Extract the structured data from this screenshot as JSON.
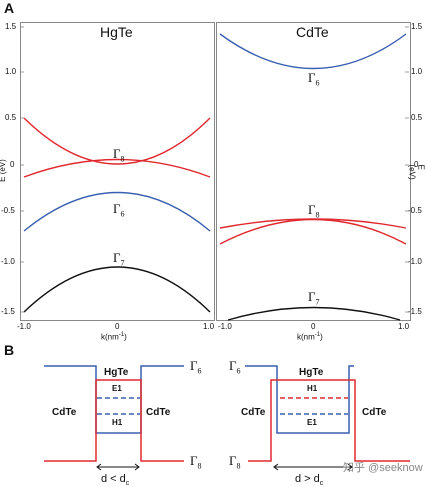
{
  "panel_a": {
    "letter": "A",
    "left_material": "HgTe",
    "right_material": "CdTe",
    "y_axis_title": "E (eV)",
    "x_axis_title": "k(nm",
    "x_axis_title_sup": "-1",
    "x_axis_title_close": ")",
    "y_ticks": [
      "1.5",
      "1.0",
      "0.5",
      "0",
      "-0.5",
      "-1.0",
      "-1.5"
    ],
    "x_ticks_left": [
      "-1.0",
      "0",
      "1.0"
    ],
    "x_ticks_right": [
      "-1.0",
      "0",
      "1.0"
    ],
    "hgte_labels": {
      "g8": "Γ",
      "g8_sub": "8",
      "g6": "Γ",
      "g6_sub": "6",
      "g7": "Γ",
      "g7_sub": "7"
    },
    "cdte_labels": {
      "g6": "Γ",
      "g6_sub": "6",
      "g8": "Γ",
      "g8_sub": "8",
      "g7": "Γ",
      "g7_sub": "7"
    }
  },
  "panel_b": {
    "letter": "B",
    "left": {
      "center": "HgTe",
      "left_side": "CdTe",
      "right_side": "CdTe",
      "upper_subband": "E1",
      "lower_subband": "H1",
      "top_label": "Γ",
      "top_sub": "6",
      "bottom_label": "Γ",
      "bottom_sub": "8",
      "width_label": "d < d",
      "width_sub": "c"
    },
    "right": {
      "center": "HgTe",
      "left_side": "CdTe",
      "right_side": "CdTe",
      "upper_subband": "H1",
      "lower_subband": "E1",
      "top_label": "Γ",
      "top_sub": "6",
      "bottom_label": "Γ",
      "bottom_sub": "8",
      "width_label": "d > d",
      "width_sub": "c"
    }
  },
  "watermark": "知乎 @seeknow",
  "colors": {
    "red": "#e0282e",
    "blue": "#3a5fb0",
    "black": "#111111",
    "frame": "#888888"
  }
}
